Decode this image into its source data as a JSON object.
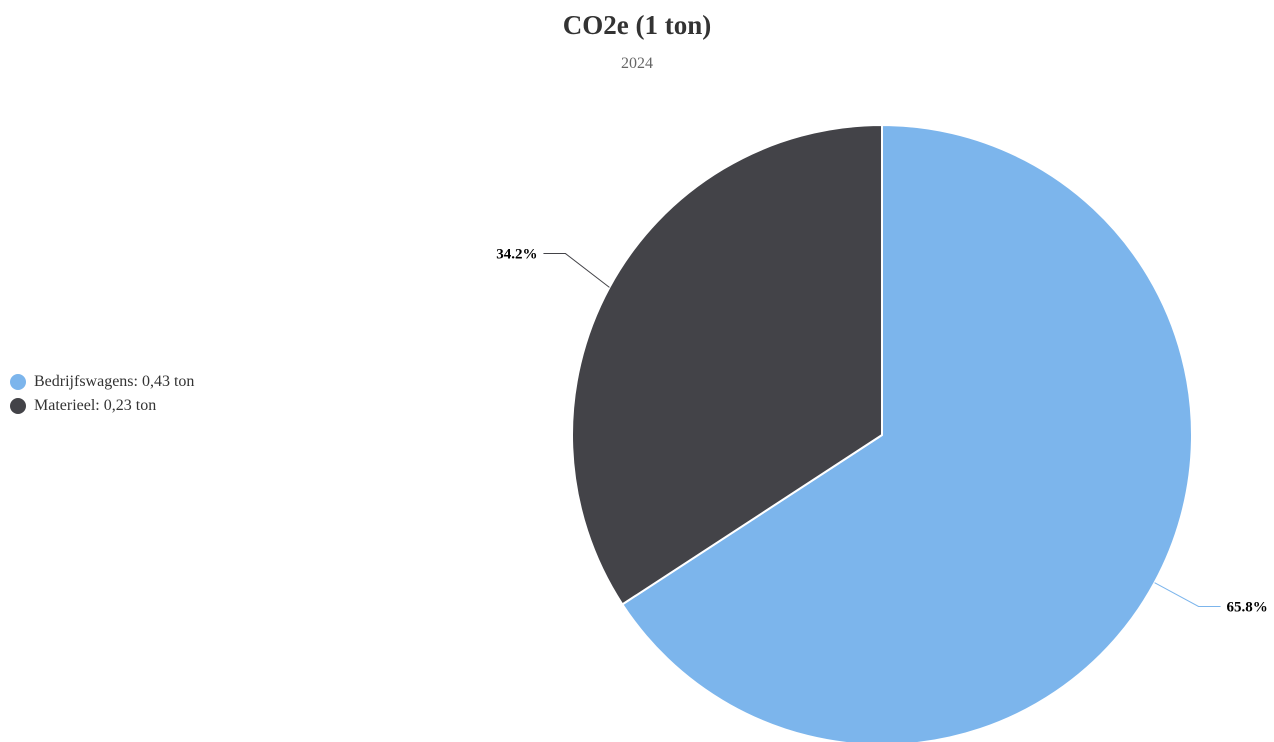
{
  "chart_data": {
    "type": "pie",
    "title": "CO2e (1 ton)",
    "subtitle": "2024",
    "slices": [
      {
        "name": "Bedrijfswagens",
        "legend": "Bedrijfswagens: 0,43 ton",
        "value": 0.43,
        "percent": 65.8,
        "label": "65.8%",
        "color": "#7cb5ec"
      },
      {
        "name": "Materieel",
        "legend": "Materieel: 0,23 ton",
        "value": 0.23,
        "percent": 34.2,
        "label": "34.2%",
        "color": "#434348"
      }
    ],
    "legend_position": "left"
  }
}
